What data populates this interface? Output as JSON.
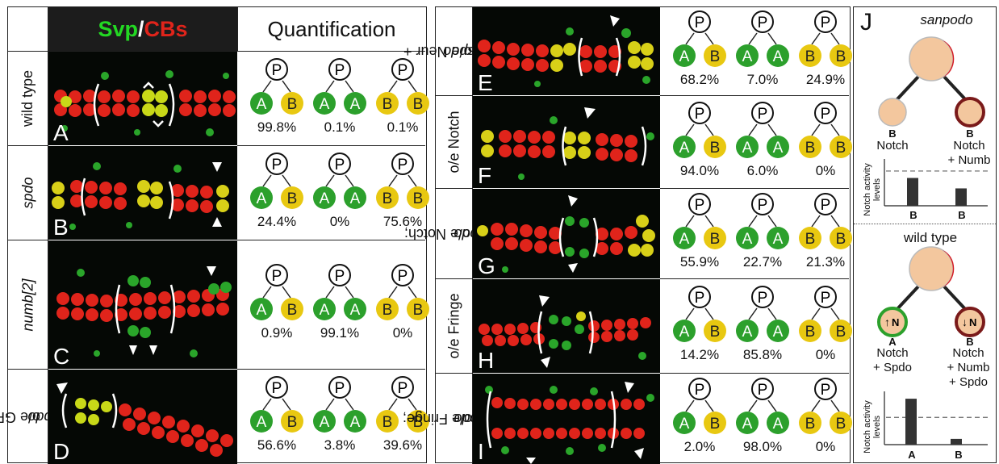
{
  "header": {
    "svp": "Svp",
    "slash": "/",
    "cbs": "CBs",
    "quant": "Quantification"
  },
  "glyphs": {
    "p": "P",
    "a": "A",
    "b": "B"
  },
  "colors": {
    "green": "#2ca02c",
    "yellow": "#e8c811",
    "red": "#d71920",
    "peach": "#f3c79e"
  },
  "left_rows": [
    {
      "label": "wild type",
      "italic": false,
      "panel": "A",
      "pcts": [
        "99.8%",
        "0.1%",
        "0.1%"
      ]
    },
    {
      "label": "spdo",
      "italic": true,
      "panel": "B",
      "pcts": [
        "24.4%",
        "0%",
        "75.6%"
      ]
    },
    {
      "label": "numb[2]",
      "italic": true,
      "panel": "C",
      "pcts": [
        "0.9%",
        "99.1%",
        "0%"
      ]
    },
    {
      "label_a": "o/e GFP;",
      "label_b": "spdo",
      "panel": "D",
      "pcts": [
        "56.6%",
        "3.8%",
        "39.6%"
      ]
    }
  ],
  "right_rows": [
    {
      "label_a": "o/e Neur +",
      "label_b": "Di; spdo",
      "panel": "E",
      "pcts": [
        "68.2%",
        "7.0%",
        "24.9%"
      ]
    },
    {
      "label": "o/e Notch",
      "panel": "F",
      "pcts": [
        "94.0%",
        "6.0%",
        "0%"
      ]
    },
    {
      "label_a": "o/e Notch;",
      "label_b": "spdo",
      "panel": "G",
      "pcts": [
        "55.9%",
        "22.7%",
        "21.3%"
      ]
    },
    {
      "label": "o/e Fringe",
      "panel": "H",
      "pcts": [
        "14.2%",
        "85.8%",
        "0%"
      ]
    },
    {
      "label_a": "o/e Fringe;",
      "label_b": "spdo",
      "panel": "I",
      "pcts": [
        "2.0%",
        "98.0%",
        "0%"
      ]
    }
  ],
  "panel_j": {
    "letter": "J",
    "sanpodo": {
      "title": "sanpodo",
      "child_b1": "B",
      "child_b1_note": "Notch",
      "child_b2": "B",
      "child_b2_note_a": "Notch",
      "child_b2_note_b": "+ Numb",
      "ylabel_a": "Notch activity",
      "ylabel_b": "levels",
      "chart_data": {
        "type": "bar",
        "categories": [
          "B",
          "B"
        ],
        "values": [
          0.8,
          0.5
        ],
        "ylim": [
          0,
          1.3
        ],
        "reference_line": 1.0
      }
    },
    "wildtype": {
      "title": "wild type",
      "child_a": "A",
      "child_a_note_a": "Notch",
      "child_a_note_b": "+ Spdo",
      "child_b": "B",
      "child_b_note_a": "Notch",
      "child_b_note_b": "+ Numb",
      "child_b_note_c": "+ Spdo",
      "n": "N",
      "ylabel_a": "Notch activity",
      "ylabel_b": "levels",
      "chart_data": {
        "type": "bar",
        "categories": [
          "A",
          "B"
        ],
        "values": [
          1.6,
          0.2
        ],
        "ylim": [
          0,
          1.8
        ],
        "reference_line": 0.95
      }
    }
  }
}
